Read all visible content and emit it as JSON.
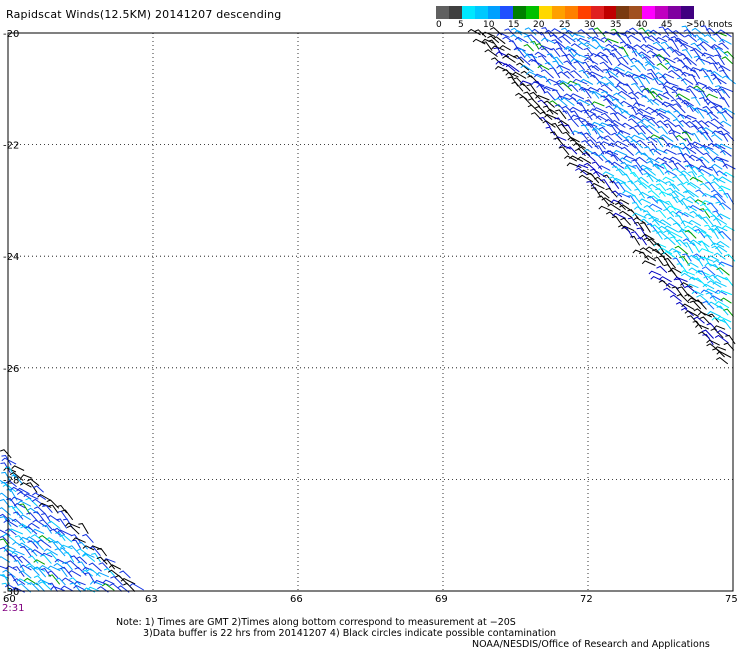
{
  "title": "Rapidscat Winds(12.5KM) 20141207 descending",
  "colorbar": {
    "colors": [
      "#606060",
      "#404040",
      "#00e8ff",
      "#00c8ff",
      "#00a0ff",
      "#2050ff",
      "#008000",
      "#00c000",
      "#ffd800",
      "#ffa000",
      "#ff8000",
      "#ff4000",
      "#e02020",
      "#c00000",
      "#7a3a10",
      "#a05020",
      "#ff00ff",
      "#c000c0",
      "#8000a0",
      "#400080"
    ],
    "labels": [
      "0",
      "5",
      "10",
      "15",
      "20",
      "25",
      "30",
      "35",
      "40",
      "45",
      ">50 knots"
    ]
  },
  "map": {
    "lon_ticks": [
      "63",
      "66",
      "69",
      "72",
      "75"
    ],
    "lat_ticks": [
      "-20",
      "-22",
      "-24",
      "-26",
      "-28",
      "-30"
    ],
    "corner_lon": "60",
    "corner_time": "2:31",
    "lon_range": [
      60,
      75
    ],
    "lat_range": [
      -30,
      -20
    ]
  },
  "notes": {
    "line1": "Note: 1) Times are GMT 2)Times along bottom correspond to measurement at −20S",
    "line2": "3)Data buffer is 22 hrs from 20141207 4) Black circles indicate possible contamination",
    "line3": "NOAA/NESDIS/Office of Research and Applications"
  }
}
